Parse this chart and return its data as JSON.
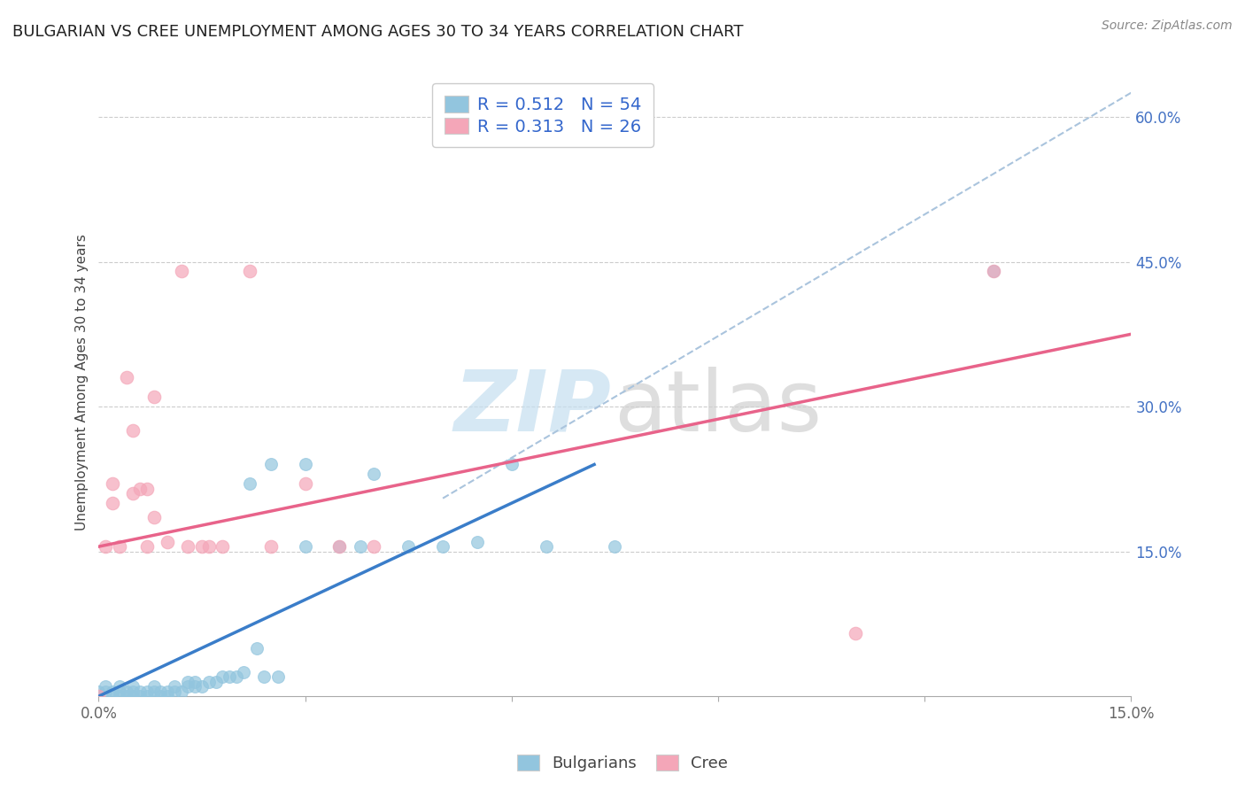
{
  "title": "BULGARIAN VS CREE UNEMPLOYMENT AMONG AGES 30 TO 34 YEARS CORRELATION CHART",
  "source": "Source: ZipAtlas.com",
  "ylabel": "Unemployment Among Ages 30 to 34 years",
  "xlim": [
    0.0,
    0.15
  ],
  "ylim": [
    0.0,
    0.65
  ],
  "xticks": [
    0.0,
    0.03,
    0.06,
    0.09,
    0.12,
    0.15
  ],
  "xtick_labels": [
    "0.0%",
    "",
    "",
    "",
    "",
    "15.0%"
  ],
  "yticks_right": [
    0.0,
    0.15,
    0.3,
    0.45,
    0.6
  ],
  "ytick_labels_right": [
    "",
    "15.0%",
    "30.0%",
    "45.0%",
    "60.0%"
  ],
  "blue_color": "#92c5de",
  "pink_color": "#f4a6b8",
  "blue_line_color": "#3a7dc9",
  "pink_line_color": "#e8638a",
  "dashed_line_color": "#aac4dd",
  "bulgarians_legend": "Bulgarians",
  "cree_legend": "Cree",
  "bulgarian_points": [
    [
      0.0,
      0.005
    ],
    [
      0.001,
      0.005
    ],
    [
      0.001,
      0.01
    ],
    [
      0.002,
      0.0
    ],
    [
      0.002,
      0.005
    ],
    [
      0.003,
      0.0
    ],
    [
      0.003,
      0.005
    ],
    [
      0.003,
      0.01
    ],
    [
      0.004,
      0.0
    ],
    [
      0.004,
      0.005
    ],
    [
      0.005,
      0.0
    ],
    [
      0.005,
      0.005
    ],
    [
      0.005,
      0.01
    ],
    [
      0.006,
      0.0
    ],
    [
      0.006,
      0.005
    ],
    [
      0.007,
      0.0
    ],
    [
      0.007,
      0.005
    ],
    [
      0.008,
      0.005
    ],
    [
      0.008,
      0.01
    ],
    [
      0.009,
      0.0
    ],
    [
      0.009,
      0.005
    ],
    [
      0.01,
      0.0
    ],
    [
      0.01,
      0.005
    ],
    [
      0.011,
      0.005
    ],
    [
      0.011,
      0.01
    ],
    [
      0.012,
      0.005
    ],
    [
      0.013,
      0.01
    ],
    [
      0.013,
      0.015
    ],
    [
      0.014,
      0.01
    ],
    [
      0.014,
      0.015
    ],
    [
      0.015,
      0.01
    ],
    [
      0.016,
      0.015
    ],
    [
      0.017,
      0.015
    ],
    [
      0.018,
      0.02
    ],
    [
      0.019,
      0.02
    ],
    [
      0.02,
      0.02
    ],
    [
      0.021,
      0.025
    ],
    [
      0.022,
      0.22
    ],
    [
      0.023,
      0.05
    ],
    [
      0.024,
      0.02
    ],
    [
      0.025,
      0.24
    ],
    [
      0.026,
      0.02
    ],
    [
      0.03,
      0.155
    ],
    [
      0.03,
      0.24
    ],
    [
      0.035,
      0.155
    ],
    [
      0.038,
      0.155
    ],
    [
      0.04,
      0.23
    ],
    [
      0.045,
      0.155
    ],
    [
      0.05,
      0.155
    ],
    [
      0.055,
      0.16
    ],
    [
      0.06,
      0.24
    ],
    [
      0.065,
      0.155
    ],
    [
      0.075,
      0.155
    ],
    [
      0.13,
      0.44
    ]
  ],
  "cree_points": [
    [
      0.0,
      0.0
    ],
    [
      0.001,
      0.155
    ],
    [
      0.002,
      0.2
    ],
    [
      0.002,
      0.22
    ],
    [
      0.003,
      0.155
    ],
    [
      0.004,
      0.33
    ],
    [
      0.005,
      0.21
    ],
    [
      0.005,
      0.275
    ],
    [
      0.006,
      0.215
    ],
    [
      0.007,
      0.215
    ],
    [
      0.007,
      0.155
    ],
    [
      0.008,
      0.31
    ],
    [
      0.008,
      0.185
    ],
    [
      0.01,
      0.16
    ],
    [
      0.012,
      0.44
    ],
    [
      0.013,
      0.155
    ],
    [
      0.015,
      0.155
    ],
    [
      0.016,
      0.155
    ],
    [
      0.018,
      0.155
    ],
    [
      0.022,
      0.44
    ],
    [
      0.025,
      0.155
    ],
    [
      0.03,
      0.22
    ],
    [
      0.035,
      0.155
    ],
    [
      0.04,
      0.155
    ],
    [
      0.11,
      0.065
    ],
    [
      0.13,
      0.44
    ]
  ],
  "blue_line_x": [
    0.0,
    0.072
  ],
  "blue_line_y": [
    0.0,
    0.24
  ],
  "pink_line_x": [
    0.0,
    0.15
  ],
  "pink_line_y": [
    0.155,
    0.375
  ],
  "dashed_line_x": [
    0.05,
    0.15
  ],
  "dashed_line_y": [
    0.205,
    0.625
  ]
}
